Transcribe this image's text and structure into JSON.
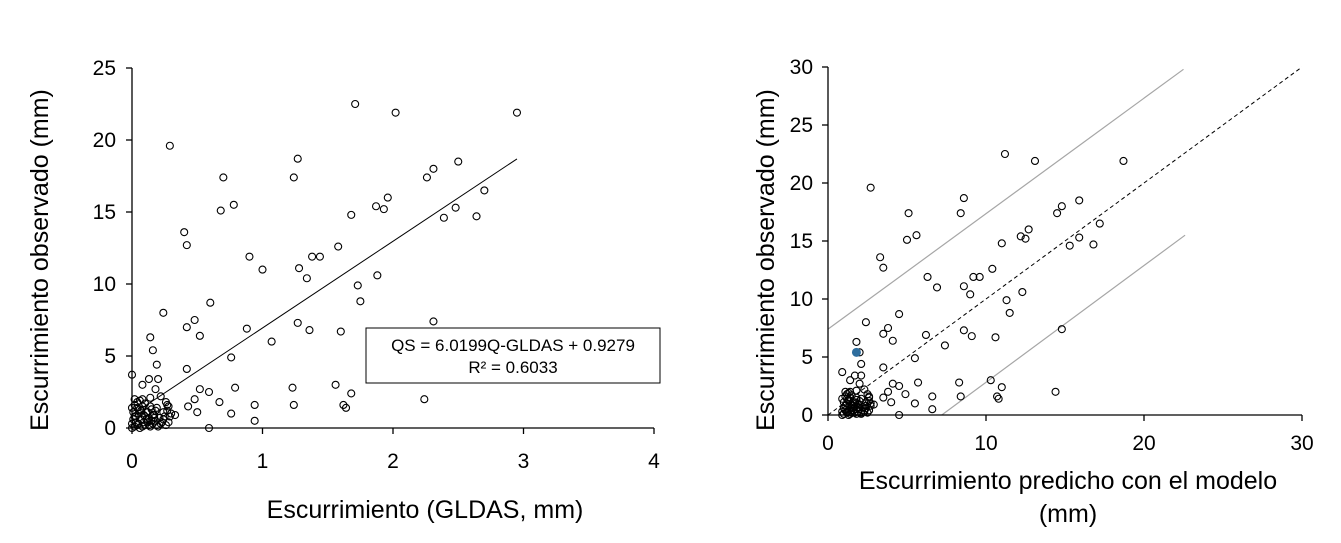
{
  "chart_data": [
    {
      "type": "scatter",
      "xlabel": "Escurrimiento (GLDAS, mm)",
      "ylabel": "Escurrimiento observado (mm)",
      "xlim": [
        0,
        4
      ],
      "ylim": [
        0,
        25
      ],
      "xticks": [
        "0",
        "1",
        "2",
        "3",
        "4"
      ],
      "yticks": [
        "0",
        "5",
        "10",
        "15",
        "20",
        "25"
      ],
      "grid": false,
      "trendline": {
        "slope": 6.0199,
        "intercept": 0.9279,
        "x_range": [
          0,
          2.95
        ]
      },
      "equation_lines": [
        "QS = 6.0199Q-GLDAS + 0.9279",
        "R² = 0.6033"
      ],
      "points": [
        [
          0.29,
          19.6
        ],
        [
          0.7,
          17.4
        ],
        [
          0.78,
          15.5
        ],
        [
          0.68,
          15.1
        ],
        [
          0.4,
          13.6
        ],
        [
          0.42,
          12.7
        ],
        [
          0.9,
          11.9
        ],
        [
          1.0,
          11.0
        ],
        [
          0.6,
          8.7
        ],
        [
          0.24,
          8.0
        ],
        [
          0.48,
          7.5
        ],
        [
          0.42,
          7.0
        ],
        [
          0.88,
          6.9
        ],
        [
          0.52,
          6.4
        ],
        [
          0.14,
          6.3
        ],
        [
          1.07,
          6.0
        ],
        [
          0.16,
          5.4
        ],
        [
          0.76,
          4.9
        ],
        [
          0.19,
          4.4
        ],
        [
          0.0,
          3.7
        ],
        [
          0.42,
          4.1
        ],
        [
          0.08,
          3.0
        ],
        [
          0.13,
          3.4
        ],
        [
          0.2,
          3.4
        ],
        [
          0.52,
          2.7
        ],
        [
          0.59,
          2.5
        ],
        [
          0.79,
          2.8
        ],
        [
          0.18,
          2.7
        ],
        [
          0.22,
          2.2
        ],
        [
          0.14,
          2.1
        ],
        [
          0.48,
          2.0
        ],
        [
          0.67,
          1.8
        ],
        [
          0.08,
          2.0
        ],
        [
          0.27,
          1.6
        ],
        [
          0.43,
          1.5
        ],
        [
          0.19,
          1.4
        ],
        [
          0.24,
          1.1
        ],
        [
          0.5,
          1.1
        ],
        [
          0.76,
          1.0
        ],
        [
          0.33,
          0.9
        ],
        [
          0.1,
          0.8
        ],
        [
          0.17,
          0.7
        ],
        [
          0.02,
          0.8
        ],
        [
          0.94,
          1.6
        ],
        [
          0.94,
          0.5
        ],
        [
          0.59,
          0.0
        ],
        [
          1.23,
          2.8
        ],
        [
          1.24,
          1.6
        ],
        [
          1.56,
          3.0
        ],
        [
          1.62,
          1.6
        ],
        [
          1.64,
          1.4
        ],
        [
          1.68,
          2.4
        ],
        [
          2.24,
          2.0
        ],
        [
          1.71,
          22.5
        ],
        [
          2.02,
          21.9
        ],
        [
          2.95,
          21.9
        ],
        [
          1.27,
          18.7
        ],
        [
          1.24,
          17.4
        ],
        [
          2.5,
          18.5
        ],
        [
          2.31,
          18.0
        ],
        [
          2.26,
          17.4
        ],
        [
          2.7,
          16.5
        ],
        [
          1.96,
          16.0
        ],
        [
          1.87,
          15.4
        ],
        [
          1.93,
          15.2
        ],
        [
          2.48,
          15.3
        ],
        [
          1.68,
          14.8
        ],
        [
          2.64,
          14.7
        ],
        [
          2.39,
          14.6
        ],
        [
          1.58,
          12.6
        ],
        [
          1.38,
          11.9
        ],
        [
          1.44,
          11.9
        ],
        [
          1.28,
          11.1
        ],
        [
          1.34,
          10.4
        ],
        [
          1.88,
          10.6
        ],
        [
          1.73,
          9.9
        ],
        [
          1.75,
          8.8
        ],
        [
          1.27,
          7.3
        ],
        [
          1.36,
          6.8
        ],
        [
          1.6,
          6.7
        ],
        [
          2.31,
          7.4
        ],
        [
          0.0,
          0.0
        ],
        [
          0.02,
          0.1
        ],
        [
          0.04,
          0.2
        ],
        [
          0.06,
          0.0
        ],
        [
          0.0,
          0.3
        ],
        [
          0.03,
          0.4
        ],
        [
          0.05,
          0.3
        ],
        [
          0.08,
          0.1
        ],
        [
          0.1,
          0.2
        ],
        [
          0.12,
          0.4
        ],
        [
          0.14,
          0.1
        ],
        [
          0.16,
          0.3
        ],
        [
          0.18,
          0.5
        ],
        [
          0.2,
          0.1
        ],
        [
          0.22,
          0.3
        ],
        [
          0.24,
          0.6
        ],
        [
          0.26,
          0.2
        ],
        [
          0.28,
          0.4
        ],
        [
          0.01,
          0.6
        ],
        [
          0.03,
          0.8
        ],
        [
          0.05,
          1.0
        ],
        [
          0.07,
          1.2
        ],
        [
          0.09,
          0.9
        ],
        [
          0.11,
          1.1
        ],
        [
          0.13,
          0.7
        ],
        [
          0.15,
          1.3
        ],
        [
          0.17,
          0.9
        ],
        [
          0.0,
          1.4
        ],
        [
          0.02,
          1.6
        ],
        [
          0.04,
          1.8
        ],
        [
          0.06,
          1.3
        ],
        [
          0.08,
          1.5
        ],
        [
          0.1,
          1.7
        ],
        [
          0.12,
          1.1
        ],
        [
          0.14,
          1.5
        ],
        [
          0.01,
          1.1
        ],
        [
          0.07,
          0.6
        ],
        [
          0.09,
          0.4
        ],
        [
          0.11,
          0.6
        ],
        [
          0.13,
          0.2
        ],
        [
          0.15,
          0.5
        ],
        [
          0.19,
          0.2
        ],
        [
          0.21,
          0.7
        ],
        [
          0.23,
          0.4
        ],
        [
          0.25,
          0.8
        ],
        [
          0.27,
          1.2
        ],
        [
          0.29,
          0.8
        ],
        [
          0.3,
          1.0
        ],
        [
          0.26,
          1.8
        ],
        [
          0.28,
          1.5
        ],
        [
          0.04,
          1.4
        ],
        [
          0.06,
          1.9
        ],
        [
          0.02,
          2.0
        ],
        [
          0.16,
          0.9
        ],
        [
          0.18,
          1.2
        ]
      ]
    },
    {
      "type": "scatter",
      "xlabel": "Escurrimiento predicho con el modelo (mm)",
      "ylabel": "Escurrimiento observado (mm)",
      "xlim": [
        0,
        30
      ],
      "ylim": [
        0,
        30
      ],
      "xticks": [
        "0",
        "10",
        "20",
        "30"
      ],
      "yticks": [
        "0",
        "5",
        "10",
        "15",
        "20",
        "25",
        "30"
      ],
      "grid": false,
      "reference_lines": [
        {
          "style": "dashed",
          "from": [
            0,
            0
          ],
          "to": [
            30,
            30
          ]
        },
        {
          "style": "solid-gray",
          "from": [
            0,
            7.4
          ],
          "to": [
            22.5,
            29.8
          ]
        },
        {
          "style": "solid-gray",
          "from": [
            7.2,
            0
          ],
          "to": [
            22.6,
            15.5
          ]
        }
      ],
      "highlight_color": "#2e6e9e",
      "highlight_point": [
        1.8,
        5.4
      ],
      "points": [
        [
          2.7,
          19.6
        ],
        [
          5.1,
          17.4
        ],
        [
          5.6,
          15.5
        ],
        [
          5.0,
          15.1
        ],
        [
          3.3,
          13.6
        ],
        [
          3.5,
          12.7
        ],
        [
          6.3,
          11.9
        ],
        [
          6.9,
          11.0
        ],
        [
          4.5,
          8.7
        ],
        [
          2.4,
          8.0
        ],
        [
          3.8,
          7.5
        ],
        [
          3.5,
          7.0
        ],
        [
          6.2,
          6.9
        ],
        [
          4.1,
          6.4
        ],
        [
          1.8,
          6.3
        ],
        [
          7.4,
          6.0
        ],
        [
          2.0,
          5.4
        ],
        [
          5.5,
          4.9
        ],
        [
          2.1,
          4.4
        ],
        [
          0.9,
          3.7
        ],
        [
          3.5,
          4.1
        ],
        [
          1.4,
          3.0
        ],
        [
          1.7,
          3.4
        ],
        [
          2.1,
          3.4
        ],
        [
          4.1,
          2.7
        ],
        [
          4.5,
          2.5
        ],
        [
          5.7,
          2.8
        ],
        [
          2.0,
          2.7
        ],
        [
          2.3,
          2.2
        ],
        [
          1.8,
          2.1
        ],
        [
          3.8,
          2.0
        ],
        [
          4.9,
          1.8
        ],
        [
          1.4,
          2.0
        ],
        [
          2.6,
          1.6
        ],
        [
          3.5,
          1.5
        ],
        [
          2.1,
          1.4
        ],
        [
          2.4,
          1.1
        ],
        [
          4.0,
          1.1
        ],
        [
          5.5,
          1.0
        ],
        [
          2.9,
          0.9
        ],
        [
          1.5,
          0.8
        ],
        [
          1.9,
          0.7
        ],
        [
          1.1,
          0.8
        ],
        [
          6.6,
          1.6
        ],
        [
          6.6,
          0.5
        ],
        [
          4.5,
          0.0
        ],
        [
          8.3,
          2.8
        ],
        [
          8.4,
          1.6
        ],
        [
          10.3,
          3.0
        ],
        [
          10.7,
          1.6
        ],
        [
          10.8,
          1.4
        ],
        [
          11.0,
          2.4
        ],
        [
          14.4,
          2.0
        ],
        [
          11.2,
          22.5
        ],
        [
          13.1,
          21.9
        ],
        [
          18.7,
          21.9
        ],
        [
          8.6,
          18.7
        ],
        [
          8.4,
          17.4
        ],
        [
          15.9,
          18.5
        ],
        [
          14.8,
          18.0
        ],
        [
          14.5,
          17.4
        ],
        [
          17.2,
          16.5
        ],
        [
          12.7,
          16.0
        ],
        [
          12.2,
          15.4
        ],
        [
          12.5,
          15.2
        ],
        [
          15.9,
          15.3
        ],
        [
          11.0,
          14.8
        ],
        [
          16.8,
          14.7
        ],
        [
          15.3,
          14.6
        ],
        [
          10.4,
          12.6
        ],
        [
          9.2,
          11.9
        ],
        [
          9.6,
          11.9
        ],
        [
          8.6,
          11.1
        ],
        [
          9.0,
          10.4
        ],
        [
          12.3,
          10.6
        ],
        [
          11.3,
          9.9
        ],
        [
          11.5,
          8.8
        ],
        [
          8.6,
          7.3
        ],
        [
          9.1,
          6.8
        ],
        [
          10.6,
          6.7
        ],
        [
          14.8,
          7.4
        ],
        [
          0.9,
          0.0
        ],
        [
          1.0,
          0.1
        ],
        [
          1.2,
          0.2
        ],
        [
          1.3,
          0.0
        ],
        [
          0.9,
          0.3
        ],
        [
          1.1,
          0.4
        ],
        [
          1.2,
          0.3
        ],
        [
          1.4,
          0.1
        ],
        [
          1.5,
          0.2
        ],
        [
          1.6,
          0.4
        ],
        [
          1.8,
          0.1
        ],
        [
          1.9,
          0.3
        ],
        [
          2.0,
          0.5
        ],
        [
          2.1,
          0.1
        ],
        [
          2.3,
          0.3
        ],
        [
          2.4,
          0.6
        ],
        [
          2.5,
          0.2
        ],
        [
          2.6,
          0.4
        ],
        [
          1.0,
          0.6
        ],
        [
          1.1,
          0.8
        ],
        [
          1.2,
          1.0
        ],
        [
          1.3,
          1.2
        ],
        [
          1.5,
          0.9
        ],
        [
          1.6,
          1.1
        ],
        [
          1.7,
          0.7
        ],
        [
          1.8,
          1.3
        ],
        [
          1.9,
          0.9
        ],
        [
          0.9,
          1.4
        ],
        [
          1.1,
          1.6
        ],
        [
          1.2,
          1.8
        ],
        [
          1.3,
          1.3
        ],
        [
          1.4,
          1.5
        ],
        [
          1.5,
          1.7
        ],
        [
          1.7,
          1.1
        ],
        [
          1.8,
          1.5
        ],
        [
          1.0,
          1.1
        ],
        [
          1.4,
          0.6
        ],
        [
          1.5,
          0.4
        ],
        [
          1.6,
          0.6
        ],
        [
          1.7,
          0.2
        ],
        [
          1.8,
          0.5
        ],
        [
          2.1,
          0.2
        ],
        [
          2.2,
          0.7
        ],
        [
          2.3,
          0.4
        ],
        [
          2.4,
          0.8
        ],
        [
          2.6,
          1.2
        ],
        [
          2.7,
          0.8
        ],
        [
          2.7,
          1.0
        ],
        [
          2.5,
          1.8
        ],
        [
          2.6,
          1.5
        ],
        [
          1.2,
          1.4
        ],
        [
          1.3,
          1.9
        ],
        [
          1.1,
          2.0
        ],
        [
          2.0,
          0.9
        ],
        [
          2.0,
          1.2
        ]
      ]
    }
  ]
}
